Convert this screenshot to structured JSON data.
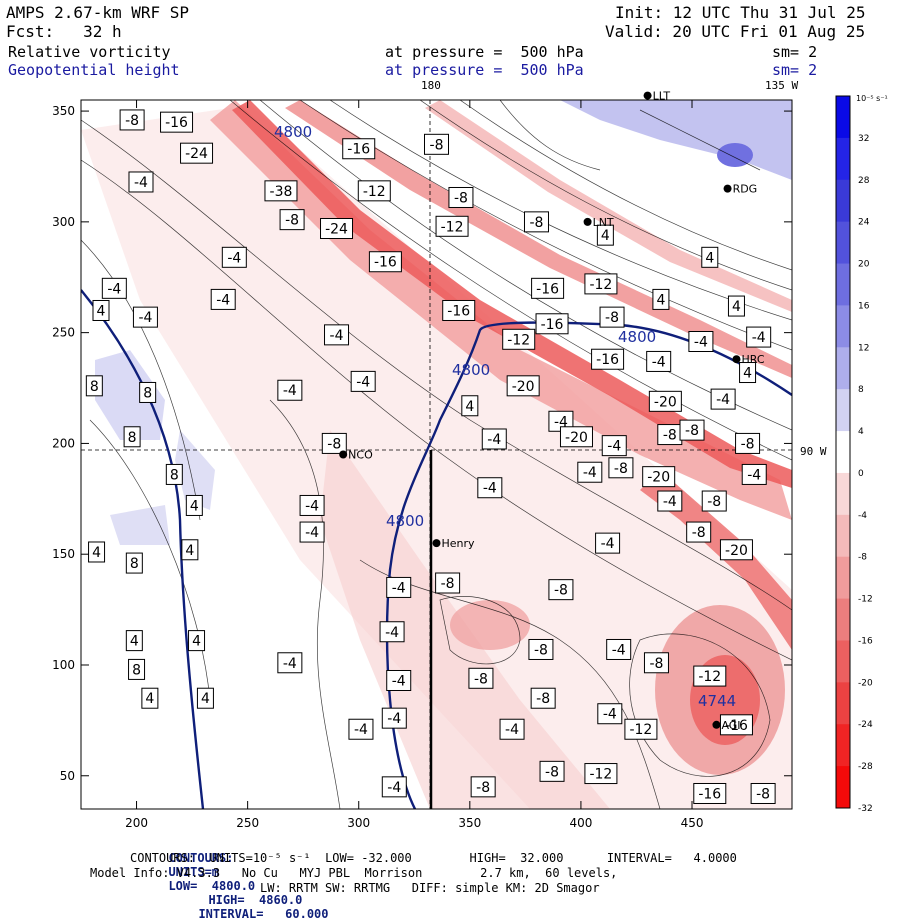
{
  "header": {
    "line1_left": "AMPS 2.67-km WRF SP",
    "line2_left": "Fcst:   32 h",
    "line1_right": "Init: 12 UTC Thu 31 Jul 25",
    "line2_right": "Valid: 20 UTC Fri 01 Aug 25",
    "field1_name": "Relative vorticity",
    "field1_level": "at pressure =  500 hPa",
    "field1_sm": "sm= 2",
    "field2_name": "Geopotential height",
    "field2_level": "at pressure =  500 hPa",
    "field2_sm": "sm= 2",
    "lon_top_180": "180",
    "lon_top_135w": "135 W",
    "lon_right_90w": "90 W"
  },
  "colorbar": {
    "unit_label": "10⁻⁵ s⁻¹",
    "ticks": [
      "32",
      "28",
      "24",
      "20",
      "16",
      "12",
      "8",
      "4",
      "0",
      "-4",
      "-8",
      "-12",
      "-16",
      "-20",
      "-24",
      "-28",
      "-32"
    ],
    "colors": [
      "#0a0ae6",
      "#2424e6",
      "#3a3ad8",
      "#5252dc",
      "#6e6ee0",
      "#8c8ce6",
      "#aeaeec",
      "#d2d2f2",
      "#ffffff",
      "#f8d8d8",
      "#f4baba",
      "#f09c9c",
      "#ec7e7e",
      "#ec6060",
      "#ec4242",
      "#f02424",
      "#f40a0a"
    ]
  },
  "chart_data": {
    "type": "contour-map",
    "x_ticks": [
      200,
      250,
      300,
      350,
      400,
      450
    ],
    "y_ticks": [
      50,
      100,
      150,
      200,
      250,
      300,
      350
    ],
    "xlim": [
      175,
      495
    ],
    "ylim": [
      35,
      355
    ],
    "grid": false,
    "height_contours": {
      "unit": "m",
      "low": 4800.0,
      "high": 4860.0,
      "interval": 60.0,
      "labels": [
        "4800",
        "4800",
        "4800",
        "4800",
        "4744"
      ]
    },
    "vorticity_contours": {
      "unit": "10^-5 s^-1",
      "low": -32.0,
      "high": 32.0,
      "interval": 4.0
    },
    "stations": [
      {
        "name": "Henry",
        "x": 335,
        "y": 155
      },
      {
        "name": "NCO",
        "x": 293,
        "y": 195
      },
      {
        "name": "RDG",
        "x": 466,
        "y": 315
      },
      {
        "name": "HRC",
        "x": 470,
        "y": 238
      },
      {
        "name": "AGI",
        "x": 461,
        "y": 73
      },
      {
        "name": "LNT",
        "x": 403,
        "y": 300
      },
      {
        "name": "LLT",
        "x": 430,
        "y": 357
      }
    ],
    "vorticity_labels": [
      {
        "text": "-8",
        "x": 198,
        "y": 346
      },
      {
        "text": "-16",
        "x": 218,
        "y": 345
      },
      {
        "text": "-24",
        "x": 227,
        "y": 331
      },
      {
        "text": "-16",
        "x": 300,
        "y": 333
      },
      {
        "text": "-8",
        "x": 335,
        "y": 335
      },
      {
        "text": "-4",
        "x": 202,
        "y": 318
      },
      {
        "text": "-38",
        "x": 265,
        "y": 314
      },
      {
        "text": "-12",
        "x": 307,
        "y": 314
      },
      {
        "text": "-8",
        "x": 346,
        "y": 311
      },
      {
        "text": "-8",
        "x": 270,
        "y": 301
      },
      {
        "text": "-24",
        "x": 290,
        "y": 297
      },
      {
        "text": "-12",
        "x": 342,
        "y": 298
      },
      {
        "text": "-8",
        "x": 380,
        "y": 300
      },
      {
        "text": "4",
        "x": 411,
        "y": 294
      },
      {
        "text": "-16",
        "x": 312,
        "y": 282
      },
      {
        "text": "-4",
        "x": 244,
        "y": 284
      },
      {
        "text": "4",
        "x": 458,
        "y": 284
      },
      {
        "text": "-4",
        "x": 190,
        "y": 270
      },
      {
        "text": "-4",
        "x": 239,
        "y": 265
      },
      {
        "text": "-16",
        "x": 385,
        "y": 270
      },
      {
        "text": "-12",
        "x": 409,
        "y": 272
      },
      {
        "text": "4",
        "x": 436,
        "y": 265
      },
      {
        "text": "-16",
        "x": 345,
        "y": 260
      },
      {
        "text": "-16",
        "x": 387,
        "y": 254
      },
      {
        "text": "-8",
        "x": 414,
        "y": 257
      },
      {
        "text": "-4",
        "x": 204,
        "y": 257
      },
      {
        "text": "4",
        "x": 184,
        "y": 260
      },
      {
        "text": "-4",
        "x": 290,
        "y": 249
      },
      {
        "text": "-12",
        "x": 372,
        "y": 247
      },
      {
        "text": "-4",
        "x": 454,
        "y": 246
      },
      {
        "text": "-4",
        "x": 480,
        "y": 248
      },
      {
        "text": "4",
        "x": 470,
        "y": 262
      },
      {
        "text": "-16",
        "x": 412,
        "y": 238
      },
      {
        "text": "-4",
        "x": 435,
        "y": 237
      },
      {
        "text": "-20",
        "x": 374,
        "y": 226
      },
      {
        "text": "-4",
        "x": 302,
        "y": 228
      },
      {
        "text": "4",
        "x": 475,
        "y": 232
      },
      {
        "text": "8",
        "x": 181,
        "y": 226
      },
      {
        "text": "8",
        "x": 205,
        "y": 223
      },
      {
        "text": "-4",
        "x": 269,
        "y": 224
      },
      {
        "text": "4",
        "x": 350,
        "y": 217
      },
      {
        "text": "-20",
        "x": 438,
        "y": 219
      },
      {
        "text": "-4",
        "x": 464,
        "y": 220
      },
      {
        "text": "-4",
        "x": 391,
        "y": 210
      },
      {
        "text": "-20",
        "x": 398,
        "y": 203
      },
      {
        "text": "-4",
        "x": 415,
        "y": 199
      },
      {
        "text": "-8",
        "x": 440,
        "y": 204
      },
      {
        "text": "-8",
        "x": 450,
        "y": 206
      },
      {
        "text": "-8",
        "x": 475,
        "y": 200
      },
      {
        "text": "8",
        "x": 198,
        "y": 203
      },
      {
        "text": "-8",
        "x": 289,
        "y": 200
      },
      {
        "text": "-4",
        "x": 361,
        "y": 202
      },
      {
        "text": "-8",
        "x": 418,
        "y": 189
      },
      {
        "text": "-20",
        "x": 435,
        "y": 185
      },
      {
        "text": "-4",
        "x": 478,
        "y": 186
      },
      {
        "text": "8",
        "x": 217,
        "y": 186
      },
      {
        "text": "-4",
        "x": 404,
        "y": 187
      },
      {
        "text": "-4",
        "x": 359,
        "y": 180
      },
      {
        "text": "-4",
        "x": 440,
        "y": 174
      },
      {
        "text": "-8",
        "x": 460,
        "y": 174
      },
      {
        "text": "4",
        "x": 226,
        "y": 172
      },
      {
        "text": "-4",
        "x": 279,
        "y": 172
      },
      {
        "text": "-4",
        "x": 279,
        "y": 160
      },
      {
        "text": "-8",
        "x": 453,
        "y": 160
      },
      {
        "text": "-4",
        "x": 412,
        "y": 155
      },
      {
        "text": "-20",
        "x": 470,
        "y": 152
      },
      {
        "text": "4",
        "x": 182,
        "y": 151
      },
      {
        "text": "8",
        "x": 199,
        "y": 146
      },
      {
        "text": "4",
        "x": 224,
        "y": 152
      },
      {
        "text": "-4",
        "x": 318,
        "y": 135
      },
      {
        "text": "-8",
        "x": 340,
        "y": 137
      },
      {
        "text": "-8",
        "x": 391,
        "y": 134
      },
      {
        "text": "-4",
        "x": 315,
        "y": 115
      },
      {
        "text": "-8",
        "x": 382,
        "y": 107
      },
      {
        "text": "-4",
        "x": 417,
        "y": 107
      },
      {
        "text": "4",
        "x": 199,
        "y": 111
      },
      {
        "text": "4",
        "x": 227,
        "y": 111
      },
      {
        "text": "-4",
        "x": 269,
        "y": 101
      },
      {
        "text": "-8",
        "x": 434,
        "y": 101
      },
      {
        "text": "-4",
        "x": 318,
        "y": 93
      },
      {
        "text": "-8",
        "x": 355,
        "y": 94
      },
      {
        "text": "-8",
        "x": 383,
        "y": 85
      },
      {
        "text": "-12",
        "x": 458,
        "y": 95
      },
      {
        "text": "8",
        "x": 200,
        "y": 98
      },
      {
        "text": "-4",
        "x": 316,
        "y": 76
      },
      {
        "text": "-4",
        "x": 413,
        "y": 78
      },
      {
        "text": "-12",
        "x": 427,
        "y": 71
      },
      {
        "text": "-16",
        "x": 470,
        "y": 73
      },
      {
        "text": "4",
        "x": 206,
        "y": 85
      },
      {
        "text": "4",
        "x": 231,
        "y": 85
      },
      {
        "text": "-4",
        "x": 301,
        "y": 71
      },
      {
        "text": "-4",
        "x": 369,
        "y": 71
      },
      {
        "text": "-8",
        "x": 387,
        "y": 52
      },
      {
        "text": "-12",
        "x": 409,
        "y": 51
      },
      {
        "text": "-4",
        "x": 316,
        "y": 45
      },
      {
        "text": "-8",
        "x": 356,
        "y": 45
      },
      {
        "text": "-16",
        "x": 458,
        "y": 42
      },
      {
        "text": "-8",
        "x": 482,
        "y": 42
      }
    ]
  },
  "footer": {
    "line1_contours": "CONTOURS:",
    "line1_units": "UNITS=m",
    "line1_low": "LOW=  4800.0",
    "line1_high": "HIGH=  4860.0",
    "line1_interval": "INTERVAL=   60.000",
    "line2": "CONTOURS:  UNITS=10⁻⁵ s⁻¹  LOW= -32.000        HIGH=  32.000      INTERVAL=   4.0000",
    "line3": "Model Info: V4.3.3   No Cu   MYJ PBL  Morrison        2.7 km,  60 levels,",
    "line4": "LW: RRTM SW: RRTMG   DIFF: simple KM: 2D Smagor"
  }
}
